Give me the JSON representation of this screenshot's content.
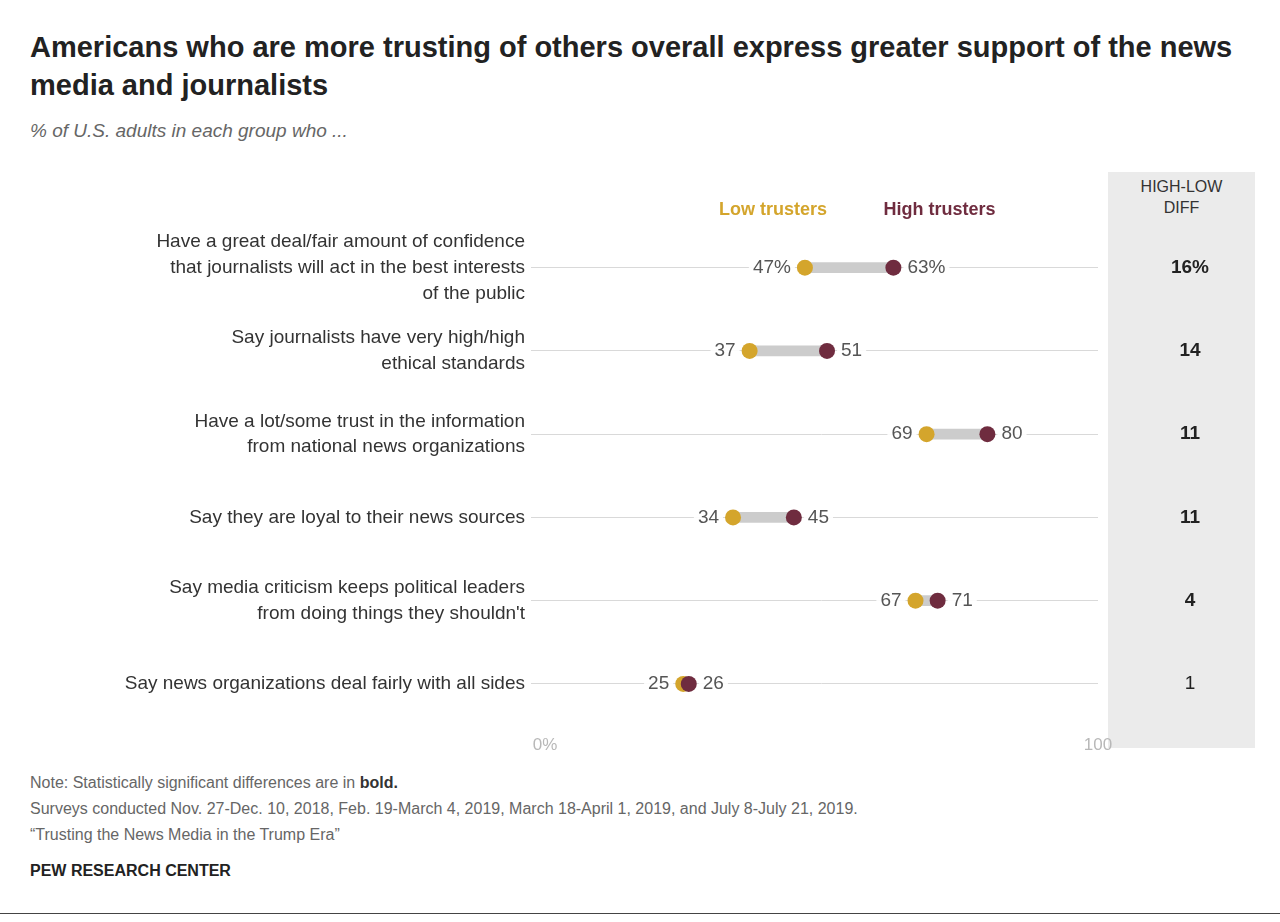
{
  "chart_data": {
    "type": "dumbbell",
    "title": "Americans who are more trusting of others overall express greater support of the news media and journalists",
    "subtitle": "% of U.S. adults in each group who ...",
    "orientation": "horizontal",
    "categories": [
      [
        "Have a great deal/fair amount of confidence",
        "that journalists will act in the best interests",
        "of the public"
      ],
      [
        "Say journalists have very high/high",
        "ethical standards"
      ],
      [
        "Have a lot/some trust in the information",
        "from national news organizations"
      ],
      [
        "Say they are loyal to their news sources"
      ],
      [
        "Say media criticism keeps political leaders",
        "from doing things they shouldn't"
      ],
      [
        "Say news organizations deal fairly with all sides"
      ]
    ],
    "series": [
      {
        "name": "Low trusters",
        "color": "#d4a52c",
        "values": [
          47,
          37,
          69,
          34,
          67,
          25
        ],
        "value_labels": [
          "47%",
          "37",
          "69",
          "34",
          "67",
          "25"
        ]
      },
      {
        "name": "High trusters",
        "color": "#6f2c3f",
        "values": [
          63,
          51,
          80,
          45,
          71,
          26
        ],
        "value_labels": [
          "63%",
          "51",
          "80",
          "45",
          "71",
          "26"
        ]
      }
    ],
    "xlim": [
      0,
      100
    ],
    "xticks": [
      {
        "value": 0,
        "label": "0%"
      },
      100
    ],
    "grid": true,
    "legend": "top",
    "data_labels": true,
    "diff": {
      "title": "HIGH-LOW DIFF",
      "values": [
        16,
        14,
        11,
        11,
        4,
        1
      ],
      "value_labels": [
        "16%",
        "14",
        "11",
        "11",
        "4",
        "1"
      ],
      "significant": [
        true,
        true,
        true,
        true,
        true,
        false
      ]
    },
    "note": "Note: Statistically significant differences are in bold.",
    "source": [
      "Surveys conducted Nov. 27-Dec. 10, 2018, Feb. 19-March 4, 2019, March 18-April 1, 2019, and July 8-July 21, 2019.",
      "“Trusting the News Media in the Trump Era”"
    ],
    "credit": "PEW RESEARCH CENTER"
  }
}
